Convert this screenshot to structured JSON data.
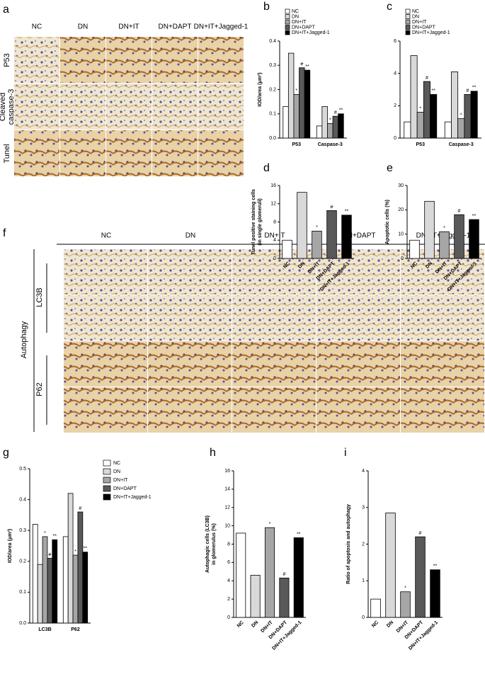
{
  "panels": {
    "labels": [
      "a",
      "b",
      "c",
      "d",
      "e",
      "f",
      "g",
      "h",
      "i"
    ]
  },
  "panel_a": {
    "columns": [
      "NC",
      "DN",
      "DN+IT",
      "DN+DAPT",
      "DN+IT+Jagged-1"
    ],
    "rows": [
      [
        "P53"
      ],
      [
        "Cleaved",
        "caspase-3"
      ],
      [
        "Tunel"
      ]
    ]
  },
  "panel_f": {
    "columns": [
      "NC",
      "DN",
      "DN+IT",
      "DN+DAPT",
      "DN+IT+Jagged-1"
    ],
    "rows": [
      "LC3B",
      "P62"
    ],
    "group": "Autophagy"
  },
  "chart_data": [
    {
      "type": "grouped-bar",
      "ylabel": [
        "IOD/area (μm²)"
      ],
      "categories": [
        "P53",
        "Caspase-3"
      ],
      "legend": "top-left",
      "ylim": [
        0,
        0.4
      ],
      "yticks": [
        {
          "value": 0,
          "label": "0.0"
        },
        0.1,
        0.2,
        0.3,
        0.4
      ],
      "series": [
        {
          "name": "NC",
          "color": "#ffffff",
          "values": [
            0.13,
            0.05
          ],
          "annotations": [
            null,
            null
          ]
        },
        {
          "name": "DN",
          "color": "#d9d9d9",
          "values": [
            0.35,
            0.13
          ],
          "annotations": [
            null,
            null
          ]
        },
        {
          "name": "DN+IT",
          "color": "#a6a6a6",
          "values": [
            0.18,
            0.06
          ],
          "annotations": [
            "*",
            "*"
          ]
        },
        {
          "name": "DN+DAPT",
          "color": "#595959",
          "values": [
            0.29,
            0.09
          ],
          "annotations": [
            "#",
            "#"
          ]
        },
        {
          "name": "DN+IT+Jagged-1",
          "color": "#000000",
          "values": [
            0.28,
            0.1
          ],
          "annotations": [
            "**",
            "**"
          ]
        }
      ]
    },
    {
      "type": "grouped-bar",
      "categories": [
        "P53",
        "Caspase-3"
      ],
      "legend": "top-left",
      "ylim": [
        0,
        6
      ],
      "yticks": [
        0,
        2,
        4,
        6
      ],
      "series": [
        {
          "name": "NC",
          "color": "#ffffff",
          "values": [
            1.0,
            1.0
          ],
          "annotations": [
            null,
            null
          ]
        },
        {
          "name": "DN",
          "color": "#d9d9d9",
          "values": [
            5.1,
            4.1
          ],
          "annotations": [
            null,
            null
          ]
        },
        {
          "name": "DN+IT",
          "color": "#a6a6a6",
          "values": [
            1.6,
            1.2
          ],
          "annotations": [
            "*",
            "*"
          ]
        },
        {
          "name": "DN+DAPT",
          "color": "#595959",
          "values": [
            3.5,
            2.7
          ],
          "annotations": [
            "#",
            "#"
          ]
        },
        {
          "name": "DN+IT+Jagged-1",
          "color": "#000000",
          "values": [
            2.7,
            2.9
          ],
          "annotations": [
            "**",
            "**"
          ]
        }
      ]
    },
    {
      "type": "bar",
      "ylabel": [
        "Tunel positive staining cells",
        "(in single glomeruli)"
      ],
      "categories": [
        "NC",
        "DN",
        "DN+IT",
        "DN+DAPT",
        "DN+IT+Jagged-1"
      ],
      "values": [
        4,
        14.5,
        6,
        10.5,
        9.5
      ],
      "colors": [
        "#ffffff",
        "#d9d9d9",
        "#a6a6a6",
        "#595959",
        "#000000"
      ],
      "annotations": [
        null,
        null,
        "*",
        "#",
        "**"
      ],
      "ylim": [
        0,
        16
      ],
      "yticks": [
        0,
        4,
        8,
        12,
        16
      ]
    },
    {
      "type": "bar",
      "ylabel": [
        "Apoptotic cells (%)"
      ],
      "categories": [
        "NC",
        "DN",
        "DN+IT",
        "DN+DAPT",
        "DN+IT+Jagged-1"
      ],
      "values": [
        7.5,
        23.5,
        11,
        18,
        16
      ],
      "colors": [
        "#ffffff",
        "#d9d9d9",
        "#a6a6a6",
        "#595959",
        "#000000"
      ],
      "annotations": [
        null,
        null,
        "*",
        "#",
        "**"
      ],
      "ylim": [
        0,
        30
      ],
      "yticks": [
        0,
        10,
        20,
        30
      ]
    },
    {
      "type": "grouped-bar",
      "ylabel": [
        "IOD/area (μm²)"
      ],
      "categories": [
        "LC3B",
        "P62"
      ],
      "legend": "right",
      "ylim": [
        0,
        0.5
      ],
      "yticks": [
        {
          "value": 0,
          "label": "0.0"
        },
        0.1,
        0.2,
        0.3,
        0.4,
        0.5
      ],
      "series": [
        {
          "name": "NC",
          "color": "#ffffff",
          "values": [
            0.32,
            0.28
          ],
          "annotations": [
            null,
            null
          ]
        },
        {
          "name": "DN",
          "color": "#d9d9d9",
          "values": [
            0.19,
            0.42
          ],
          "annotations": [
            null,
            null
          ]
        },
        {
          "name": "DN+IT",
          "color": "#a6a6a6",
          "values": [
            0.28,
            0.22
          ],
          "annotations": [
            "*",
            "*"
          ]
        },
        {
          "name": "DN+DAPT",
          "color": "#595959",
          "values": [
            0.21,
            0.36
          ],
          "annotations": [
            "#",
            "#"
          ]
        },
        {
          "name": "DN+IT+Jagged-1",
          "color": "#000000",
          "values": [
            0.27,
            0.23
          ],
          "annotations": [
            "**",
            "**"
          ]
        }
      ]
    },
    {
      "type": "bar",
      "ylabel": [
        "Autophagic cells (LC3B)",
        "in glomerulus (%)"
      ],
      "categories": [
        "NC",
        "DN",
        "DN+IT",
        "DN+DAPT",
        "DN+IT+Jagged-1"
      ],
      "values": [
        9.2,
        4.6,
        9.8,
        4.3,
        8.7
      ],
      "colors": [
        "#ffffff",
        "#d9d9d9",
        "#a6a6a6",
        "#595959",
        "#000000"
      ],
      "annotations": [
        null,
        null,
        "*",
        "#",
        "**"
      ],
      "ylim": [
        0,
        16
      ],
      "yticks": [
        0,
        2,
        4,
        6,
        8,
        10,
        12,
        14,
        16
      ]
    },
    {
      "type": "bar",
      "ylabel": [
        "Ratio of apoptosis and autophagy"
      ],
      "categories": [
        "NC",
        "DN",
        "DN+IT",
        "DN+DAPT",
        "DN+IT+Jagged-1"
      ],
      "values": [
        0.5,
        2.85,
        0.7,
        2.2,
        1.3
      ],
      "colors": [
        "#ffffff",
        "#d9d9d9",
        "#a6a6a6",
        "#595959",
        "#000000"
      ],
      "annotations": [
        null,
        null,
        "*",
        "#",
        "**"
      ],
      "ylim": [
        0,
        4
      ],
      "yticks": [
        0,
        1,
        2,
        3,
        4
      ]
    }
  ]
}
